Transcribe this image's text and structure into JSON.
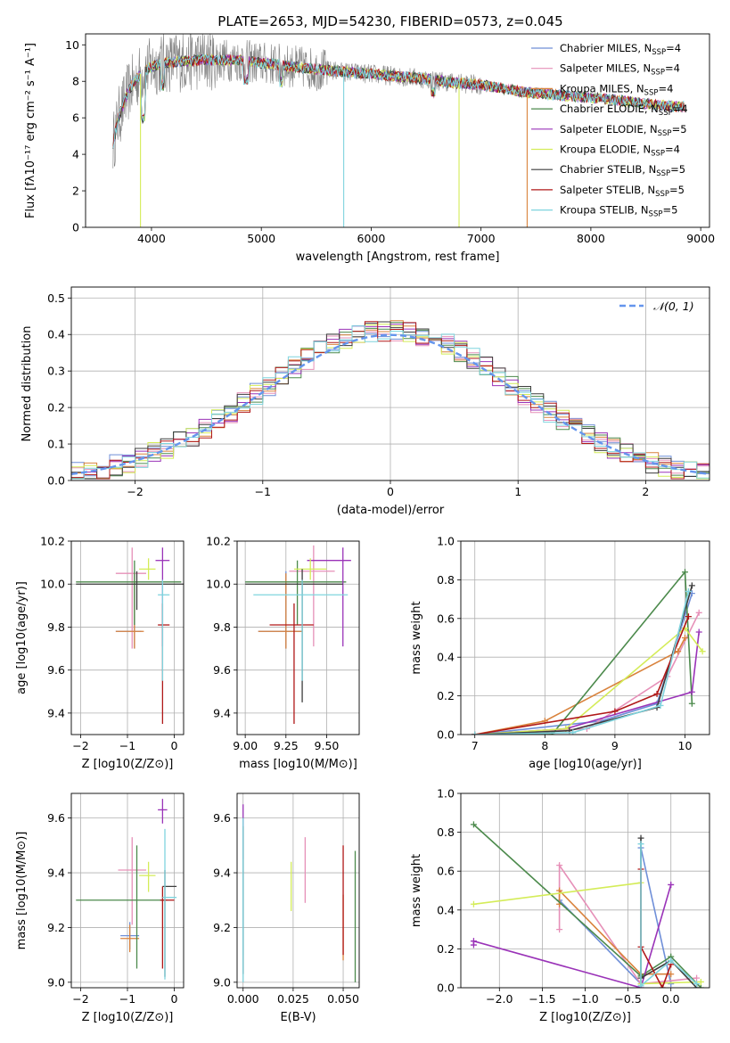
{
  "title": "PLATE=2653, MJD=54230, FIBERID=0573, z=0.045",
  "colors": {
    "Chabrier MILES": "#6f8fd8",
    "Salpeter MILES": "#e690b8",
    "Kroupa MILES": "#d9823c",
    "Chabrier ELODIE": "#4c8a4c",
    "Salpeter ELODIE": "#9a33b8",
    "Kroupa ELODIE": "#d4ec58",
    "Chabrier STELIB": "#3d3d3d",
    "Salpeter STELIB": "#b01818",
    "Kroupa STELIB": "#7fd4de",
    "data": "#808080",
    "normal": "#6495ed"
  },
  "chart_data": [
    {
      "type": "line",
      "panel": "spectrum",
      "xlabel": "wavelength [Angstrom, rest frame]",
      "ylabel": "Flux [fλ10⁻¹⁷ erg cm⁻² s⁻¹ A⁻¹]",
      "xlim": [
        3400,
        9080
      ],
      "ylim": [
        0,
        10.6
      ],
      "xticks": [
        4000,
        5000,
        6000,
        7000,
        8000,
        9000
      ],
      "yticks": [
        0,
        2,
        4,
        6,
        8,
        10
      ],
      "continuum": {
        "x": [
          3650,
          3700,
          3800,
          3900,
          4000,
          4100,
          4300,
          4500,
          4800,
          5000,
          5300,
          5600,
          6000,
          6400,
          6800,
          7000,
          7200,
          7400,
          7600,
          7800,
          8000,
          8200,
          8400,
          8600,
          8800
        ],
        "y": [
          4.6,
          6.0,
          7.6,
          8.4,
          8.8,
          9.0,
          9.1,
          9.2,
          9.15,
          9.0,
          8.8,
          8.6,
          8.4,
          8.2,
          7.9,
          7.8,
          7.6,
          7.4,
          7.3,
          7.2,
          7.1,
          7.0,
          6.85,
          6.7,
          6.6
        ]
      },
      "legend": [
        "Chabrier MILES, N_SSP=4",
        "Salpeter MILES, N_SSP=4",
        "Kroupa MILES, N_SSP=4",
        "Chabrier ELODIE, N_SSP=4",
        "Salpeter ELODIE, N_SSP=5",
        "Kroupa ELODIE, N_SSP=4",
        "Chabrier STELIB, N_SSP=5",
        "Salpeter STELIB, N_SSP=5",
        "Kroupa STELIB, N_SSP=5"
      ],
      "legend_items": [
        {
          "pre": "Chabrier MILES, N",
          "sub": "SSP",
          "post": "=4"
        },
        {
          "pre": "Salpeter MILES, N",
          "sub": "SSP",
          "post": "=4"
        },
        {
          "pre": "Kroupa MILES, N",
          "sub": "SSP",
          "post": "=4"
        },
        {
          "pre": "Chabrier ELODIE, N",
          "sub": "SSP",
          "post": "=4"
        },
        {
          "pre": "Salpeter ELODIE, N",
          "sub": "SSP",
          "post": "=5"
        },
        {
          "pre": "Kroupa ELODIE, N",
          "sub": "SSP",
          "post": "=4"
        },
        {
          "pre": "Chabrier STELIB, N",
          "sub": "SSP",
          "post": "=5"
        },
        {
          "pre": "Salpeter STELIB, N",
          "sub": "SSP",
          "post": "=5"
        },
        {
          "pre": "Kroupa STELIB, N",
          "sub": "SSP",
          "post": "=5"
        }
      ],
      "legend_placement": "top-right"
    },
    {
      "type": "line",
      "panel": "residuals",
      "xlabel": "(data-model)/error",
      "ylabel": "Normed distribution",
      "xlim": [
        -2.5,
        2.5
      ],
      "ylim": [
        0,
        0.53
      ],
      "xticks": [
        -2,
        -1,
        0,
        1,
        2
      ],
      "yticks": [
        0.0,
        0.1,
        0.2,
        0.3,
        0.4,
        0.5
      ],
      "grid": true,
      "legend": [
        "𝒩(0, 1)"
      ],
      "legend_placement": "top-right",
      "bin_width": 0.1
    },
    {
      "type": "scatter",
      "panel": "age-vs-Z",
      "xlabel": "Z [log10(Z/Z⊙)]",
      "ylabel": "age [log10(age/yr)]",
      "xlim": [
        -2.2,
        0.2
      ],
      "ylim": [
        9.3,
        10.2
      ],
      "xticks": [
        -2,
        -1,
        0
      ],
      "yticks": [
        9.4,
        9.6,
        9.8,
        10.0,
        10.2
      ],
      "grid": true,
      "points": [
        {
          "model": "Chabrier MILES",
          "x": -0.85,
          "xerr": [
            0.4,
            0.15
          ],
          "y": 9.78,
          "yerr": [
            0.08,
            0.28
          ]
        },
        {
          "model": "Salpeter MILES",
          "x": -0.9,
          "xerr": [
            0.35,
            0.3
          ],
          "y": 10.05,
          "yerr": [
            0.35,
            0.12
          ]
        },
        {
          "model": "Kroupa MILES",
          "x": -0.85,
          "xerr": [
            0.4,
            0.2
          ],
          "y": 9.78,
          "yerr": [
            0.08,
            0.27
          ]
        },
        {
          "model": "Chabrier ELODIE",
          "x": -0.85,
          "xerr": [
            1.25,
            1.0
          ],
          "y": 10.01,
          "yerr": [
            0.2,
            0.1
          ]
        },
        {
          "model": "Salpeter ELODIE",
          "x": -0.25,
          "xerr": [
            0.15,
            0.15
          ],
          "y": 10.11,
          "yerr": [
            0.4,
            0.06
          ]
        },
        {
          "model": "Kroupa ELODIE",
          "x": -0.55,
          "xerr": [
            0.2,
            0.15
          ],
          "y": 10.07,
          "yerr": [
            0.05,
            0.05
          ]
        },
        {
          "model": "Chabrier STELIB",
          "x": -0.8,
          "xerr": [
            1.3,
            1.0
          ],
          "y": 10.0,
          "yerr": [
            0.12,
            0.06
          ]
        },
        {
          "model": "Salpeter STELIB",
          "x": -0.25,
          "xerr": [
            0.1,
            0.15
          ],
          "y": 9.81,
          "yerr": [
            0.46,
            0.1
          ]
        },
        {
          "model": "Kroupa STELIB",
          "x": -0.25,
          "xerr": [
            0.1,
            0.15
          ],
          "y": 9.95,
          "yerr": [
            0.4,
            0.07
          ]
        }
      ]
    },
    {
      "type": "scatter",
      "panel": "age-vs-mass",
      "xlabel": "mass [log10(M/M⊙)]",
      "ylabel": "",
      "xlim": [
        8.95,
        9.7
      ],
      "ylim": [
        9.3,
        10.2
      ],
      "xticks": [
        9.0,
        9.25,
        9.5
      ],
      "yticks": [
        9.4,
        9.6,
        9.8,
        10.0,
        10.2
      ],
      "grid": true,
      "points": [
        {
          "model": "Chabrier MILES",
          "x": 9.25,
          "xerr": [
            0.17,
            0.1
          ],
          "y": 9.78,
          "yerr": [
            0.08,
            0.28
          ]
        },
        {
          "model": "Salpeter MILES",
          "x": 9.42,
          "xerr": [
            0.15,
            0.13
          ],
          "y": 10.06,
          "yerr": [
            0.35,
            0.12
          ]
        },
        {
          "model": "Kroupa MILES",
          "x": 9.25,
          "xerr": [
            0.17,
            0.1
          ],
          "y": 9.78,
          "yerr": [
            0.08,
            0.27
          ]
        },
        {
          "model": "Chabrier ELODIE",
          "x": 9.32,
          "xerr": [
            0.32,
            0.3
          ],
          "y": 10.01,
          "yerr": [
            0.2,
            0.1
          ]
        },
        {
          "model": "Salpeter ELODIE",
          "x": 9.6,
          "xerr": [
            0.22,
            0.05
          ],
          "y": 10.11,
          "yerr": [
            0.4,
            0.06
          ]
        },
        {
          "model": "Kroupa ELODIE",
          "x": 9.4,
          "xerr": [
            0.1,
            0.1
          ],
          "y": 10.07,
          "yerr": [
            0.05,
            0.05
          ]
        },
        {
          "model": "Chabrier STELIB",
          "x": 9.35,
          "xerr": [
            0.35,
            0.25
          ],
          "y": 10.0,
          "yerr": [
            0.55,
            0.07
          ]
        },
        {
          "model": "Salpeter STELIB",
          "x": 9.3,
          "xerr": [
            0.15,
            0.12
          ],
          "y": 9.81,
          "yerr": [
            0.46,
            0.1
          ]
        },
        {
          "model": "Kroupa STELIB",
          "x": 9.35,
          "xerr": [
            0.3,
            0.28
          ],
          "y": 9.95,
          "yerr": [
            0.4,
            0.07
          ]
        }
      ]
    },
    {
      "type": "line",
      "panel": "mass-weight-vs-age",
      "xlabel": "age [log10(age/yr)]",
      "ylabel": "mass weight",
      "xlim": [
        6.8,
        10.35
      ],
      "ylim": [
        0,
        1.0
      ],
      "xticks": [
        7,
        8,
        9,
        10
      ],
      "yticks": [
        0.0,
        0.2,
        0.4,
        0.6,
        0.8,
        1.0
      ],
      "grid": true,
      "series": [
        {
          "model": "Chabrier MILES",
          "x": [
            7.0,
            8.8,
            9.6,
            10.1
          ],
          "y": [
            0.0,
            0.07,
            0.16,
            0.73
          ]
        },
        {
          "model": "Salpeter MILES",
          "x": [
            7.0,
            8.6,
            9.75,
            10.2
          ],
          "y": [
            0.0,
            0.03,
            0.3,
            0.63
          ]
        },
        {
          "model": "Kroupa MILES",
          "x": [
            7.0,
            8.0,
            9.9,
            10.0
          ],
          "y": [
            0.0,
            0.07,
            0.43,
            0.5
          ]
        },
        {
          "model": "Chabrier ELODIE",
          "x": [
            7.0,
            8.1,
            10.0,
            10.1
          ],
          "y": [
            0.0,
            0.0,
            0.84,
            0.16
          ]
        },
        {
          "model": "Salpeter ELODIE",
          "x": [
            7.0,
            8.3,
            10.1,
            10.2
          ],
          "y": [
            0.0,
            0.03,
            0.22,
            0.53
          ]
        },
        {
          "model": "Kroupa ELODIE",
          "x": [
            7.0,
            8.3,
            10.0,
            10.25
          ],
          "y": [
            0.0,
            0.03,
            0.55,
            0.43
          ]
        },
        {
          "model": "Chabrier STELIB",
          "x": [
            7.0,
            8.35,
            9.6,
            10.1
          ],
          "y": [
            0.0,
            0.02,
            0.14,
            0.77
          ]
        },
        {
          "model": "Salpeter STELIB",
          "x": [
            7.0,
            9.0,
            9.6,
            10.05
          ],
          "y": [
            0.0,
            0.12,
            0.21,
            0.61
          ]
        },
        {
          "model": "Kroupa STELIB",
          "x": [
            7.0,
            8.4,
            9.65,
            10.05
          ],
          "y": [
            0.0,
            0.01,
            0.15,
            0.74
          ]
        }
      ]
    },
    {
      "type": "scatter",
      "panel": "mass-vs-Z",
      "xlabel": "Z [log10(Z/Z⊙)]",
      "ylabel": "mass [log10(M/M⊙)]",
      "xlim": [
        -2.2,
        0.2
      ],
      "ylim": [
        8.98,
        9.69
      ],
      "xticks": [
        -2,
        -1,
        0
      ],
      "yticks": [
        9.0,
        9.2,
        9.4,
        9.6
      ],
      "grid": true,
      "points": [
        {
          "model": "Chabrier MILES",
          "x": -0.95,
          "xerr": [
            0.2,
            0.2
          ],
          "y": 9.17,
          "yerr": [
            0.05,
            0.05
          ]
        },
        {
          "model": "Salpeter MILES",
          "x": -0.9,
          "xerr": [
            0.3,
            0.3
          ],
          "y": 9.41,
          "yerr": [
            0.2,
            0.12
          ]
        },
        {
          "model": "Kroupa MILES",
          "x": -0.95,
          "xerr": [
            0.2,
            0.2
          ],
          "y": 9.16,
          "yerr": [
            0.05,
            0.05
          ]
        },
        {
          "model": "Chabrier ELODIE",
          "x": -0.8,
          "xerr": [
            1.3,
            0.65
          ],
          "y": 9.3,
          "yerr": [
            0.25,
            0.2
          ]
        },
        {
          "model": "Salpeter ELODIE",
          "x": -0.25,
          "xerr": [
            0.1,
            0.1
          ],
          "y": 9.63,
          "yerr": [
            0.05,
            0.04
          ]
        },
        {
          "model": "Kroupa ELODIE",
          "x": -0.55,
          "xerr": [
            0.2,
            0.15
          ],
          "y": 9.39,
          "yerr": [
            0.06,
            0.05
          ]
        },
        {
          "model": "Chabrier STELIB",
          "x": -0.2,
          "xerr": [
            0.05,
            0.25
          ],
          "y": 9.35,
          "yerr": [
            0.33,
            0.06
          ]
        },
        {
          "model": "Salpeter STELIB",
          "x": -0.25,
          "xerr": [
            0.05,
            0.25
          ],
          "y": 9.3,
          "yerr": [
            0.25,
            0.05
          ]
        },
        {
          "model": "Kroupa STELIB",
          "x": -0.2,
          "xerr": [
            0.05,
            0.25
          ],
          "y": 9.31,
          "yerr": [
            0.3,
            0.25
          ]
        }
      ]
    },
    {
      "type": "scatter",
      "panel": "mass-vs-EBV",
      "xlabel": "E(B-V)",
      "ylabel": "",
      "xlim": [
        -0.003,
        0.058
      ],
      "ylim": [
        8.98,
        9.69
      ],
      "xticks": [
        0.0,
        0.025,
        0.05
      ],
      "yticks": [
        9.0,
        9.2,
        9.4,
        9.6
      ],
      "grid": true,
      "points": [
        {
          "model": "Chabrier MILES",
          "x": 0.0,
          "y": 9.35,
          "yerr": [
            0.25,
            0.25
          ]
        },
        {
          "model": "Salpeter MILES",
          "x": 0.031,
          "y": 9.41,
          "yerr": [
            0.12,
            0.12
          ]
        },
        {
          "model": "Kroupa MILES",
          "x": 0.05,
          "y": 9.2,
          "yerr": [
            0.12,
            0.12
          ]
        },
        {
          "model": "Chabrier ELODIE",
          "x": 0.056,
          "y": 9.24,
          "yerr": [
            0.24,
            0.24
          ]
        },
        {
          "model": "Salpeter ELODIE",
          "x": 0.0,
          "y": 9.55,
          "yerr": [
            0.1,
            0.1
          ]
        },
        {
          "model": "Kroupa ELODIE",
          "x": 0.024,
          "y": 9.35,
          "yerr": [
            0.09,
            0.09
          ]
        },
        {
          "model": "Chabrier STELIB",
          "x": 0.0,
          "y": 9.3,
          "yerr": [
            0.27,
            0.27
          ]
        },
        {
          "model": "Salpeter STELIB",
          "x": 0.05,
          "y": 9.3,
          "yerr": [
            0.2,
            0.2
          ]
        },
        {
          "model": "Kroupa STELIB",
          "x": 0.0,
          "y": 9.3,
          "yerr": [
            0.3,
            0.3
          ]
        }
      ]
    },
    {
      "type": "line",
      "panel": "mass-weight-vs-Z",
      "xlabel": "Z [log10(Z/Z⊙)]",
      "ylabel": "mass weight",
      "xlim": [
        -2.45,
        0.45
      ],
      "ylim": [
        0,
        1.0
      ],
      "xticks": [
        -2.0,
        -1.5,
        -1.0,
        -0.5,
        0.0
      ],
      "yticks": [
        0.0,
        0.2,
        0.4,
        0.6,
        0.8,
        1.0
      ],
      "grid": true,
      "series": [
        {
          "model": "Chabrier MILES",
          "x": [
            -1.3,
            -0.35,
            -0.35,
            0.0
          ],
          "y": [
            0.45,
            0.02,
            0.72,
            0.02
          ]
        },
        {
          "model": "Salpeter MILES",
          "x": [
            -1.3,
            -1.3,
            -0.35,
            0.3
          ],
          "y": [
            0.3,
            0.63,
            0.02,
            0.05
          ]
        },
        {
          "model": "Kroupa MILES",
          "x": [
            -1.3,
            -1.3,
            -0.35,
            0.0
          ],
          "y": [
            0.43,
            0.5,
            0.07,
            0.07
          ]
        },
        {
          "model": "Chabrier ELODIE",
          "x": [
            -2.3,
            -0.35,
            0.0,
            0.35
          ],
          "y": [
            0.84,
            0.06,
            0.16,
            0.0
          ]
        },
        {
          "model": "Salpeter ELODIE",
          "x": [
            -2.3,
            -2.3,
            -0.35,
            0.0
          ],
          "y": [
            0.22,
            0.24,
            0.0,
            0.53
          ]
        },
        {
          "model": "Kroupa ELODIE",
          "x": [
            -2.3,
            -0.35,
            -0.35,
            0.35
          ],
          "y": [
            0.43,
            0.54,
            0.02,
            0.03
          ]
        },
        {
          "model": "Chabrier STELIB",
          "x": [
            -0.35,
            -0.35,
            0.0,
            0.3
          ],
          "y": [
            0.77,
            0.05,
            0.14,
            0.0
          ]
        },
        {
          "model": "Salpeter STELIB",
          "x": [
            -0.35,
            -0.35,
            -0.1,
            0.0
          ],
          "y": [
            0.61,
            0.21,
            0.0,
            0.12
          ]
        },
        {
          "model": "Kroupa STELIB",
          "x": [
            -0.35,
            -0.35,
            0.0,
            0.3
          ],
          "y": [
            0.74,
            0.01,
            0.14,
            0.02
          ]
        }
      ]
    }
  ]
}
